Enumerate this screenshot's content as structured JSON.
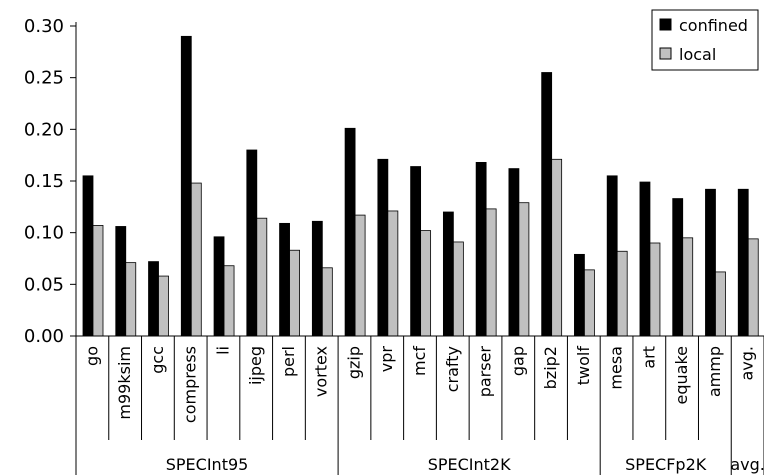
{
  "chart_data": {
    "type": "bar",
    "title": "",
    "xlabel": "",
    "ylabel": "",
    "ylim": [
      0,
      0.3
    ],
    "yticks": [
      "0.00",
      "0.05",
      "0.10",
      "0.15",
      "0.20",
      "0.25",
      "0.30"
    ],
    "grid": "none",
    "legend_position": "top-right",
    "categories": [
      "go",
      "m99ksim",
      "gcc",
      "compress",
      "li",
      "ijpeg",
      "perl",
      "vortex",
      "gzip",
      "vpr",
      "mcf",
      "crafty",
      "parser",
      "gap",
      "bzip2",
      "twolf",
      "mesa",
      "art",
      "equake",
      "ammp",
      "avg."
    ],
    "groups": [
      {
        "name": "SPECInt95",
        "start": 0,
        "end": 7
      },
      {
        "name": "SPECInt2K",
        "start": 8,
        "end": 15
      },
      {
        "name": "SPECFp2K",
        "start": 16,
        "end": 19
      },
      {
        "name": "avg.",
        "start": 20,
        "end": 20
      }
    ],
    "series": [
      {
        "name": "confined",
        "color": "#000000",
        "values": [
          0.155,
          0.106,
          0.072,
          0.29,
          0.096,
          0.18,
          0.109,
          0.111,
          0.201,
          0.171,
          0.164,
          0.12,
          0.168,
          0.162,
          0.255,
          0.079,
          0.155,
          0.149,
          0.133,
          0.142,
          0.142
        ]
      },
      {
        "name": "local",
        "color": "#c0c0c0",
        "values": [
          0.107,
          0.071,
          0.058,
          0.148,
          0.068,
          0.114,
          0.083,
          0.066,
          0.117,
          0.121,
          0.102,
          0.091,
          0.123,
          0.129,
          0.171,
          0.064,
          0.082,
          0.09,
          0.095,
          0.062,
          0.094
        ]
      }
    ]
  }
}
